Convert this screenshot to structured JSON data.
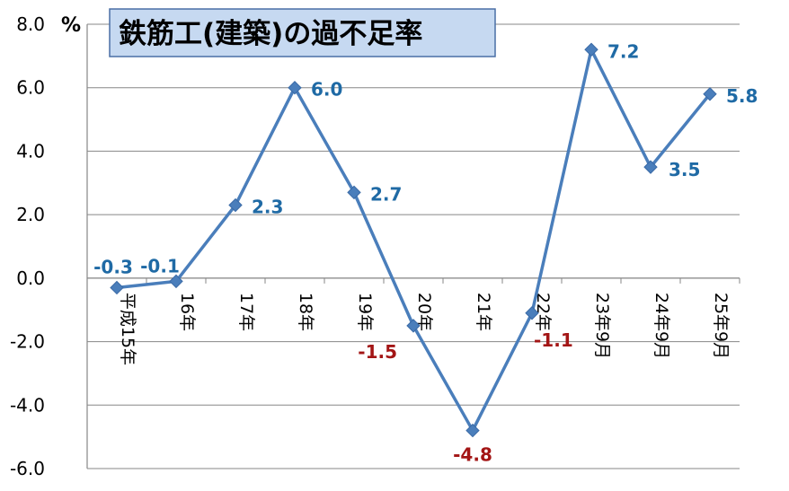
{
  "chart_data": {
    "type": "line",
    "title": "鉄筋工(建築)の過不足率",
    "ylabel": "%",
    "ylim": [
      -6.0,
      8.0
    ],
    "yticks": [
      "8.0",
      "6.0",
      "4.0",
      "2.0",
      "0.0",
      "-2.0",
      "-4.0",
      "-6.0"
    ],
    "categories": [
      "平成15年",
      "16年",
      "17年",
      "18年",
      "19年",
      "20年",
      "21年",
      "22年",
      "23年9月",
      "24年9月",
      "25年9月"
    ],
    "series": [
      {
        "values": [
          -0.3,
          -0.1,
          2.3,
          6.0,
          2.7,
          -1.5,
          -4.8,
          -1.1,
          7.2,
          3.5,
          5.8
        ]
      }
    ],
    "data_labels": [
      "-0.3",
      "-0.1",
      "2.3",
      "6.0",
      "2.7",
      "-1.5",
      "-4.8",
      "-1.1",
      "7.2",
      "3.5",
      "5.8"
    ],
    "grid": true,
    "colors": {
      "line": "#4a7ebb",
      "marker": "#4a7ebb",
      "positive_label": "#1f6aa5",
      "negative_label": "#a31515",
      "title_bg": "#c6d9f1"
    }
  }
}
